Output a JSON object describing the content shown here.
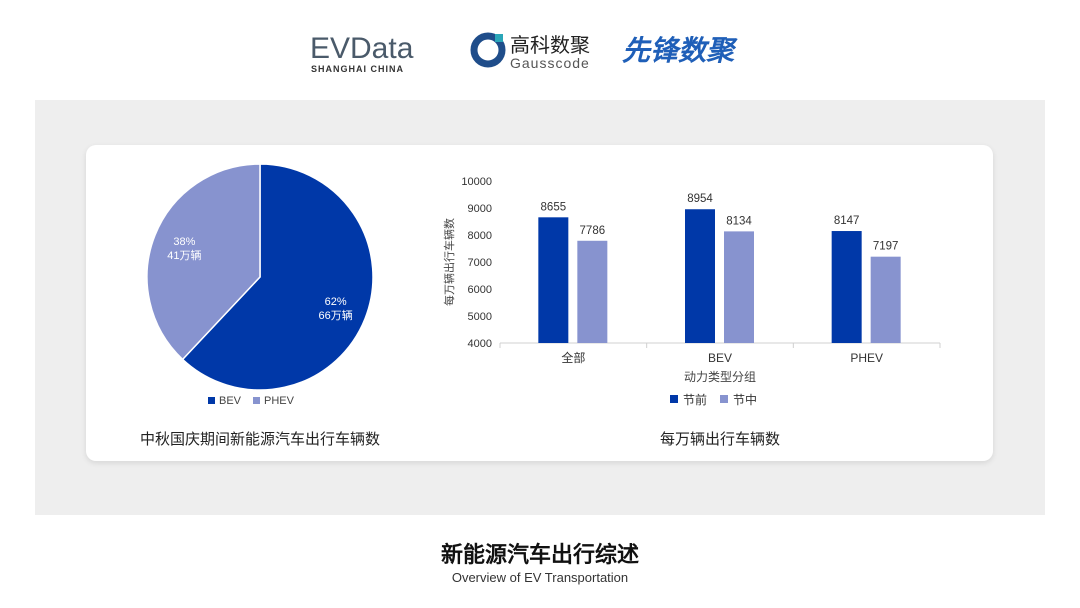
{
  "logos": {
    "evdata": "EVData",
    "evdata_sub": "SHANGHAI CHINA",
    "gauss_cn": "高科数聚",
    "gauss_en": "Gausscode",
    "xianfeng": "先锋数聚"
  },
  "colors": {
    "bev": "#0038a8",
    "phev": "#8793cf",
    "before": "#0038a8",
    "during": "#8793cf"
  },
  "chart_data": [
    {
      "type": "pie",
      "caption": "中秋国庆期间新能源汽车出行车辆数",
      "slices": [
        {
          "name": "BEV",
          "percent": 62,
          "label": "62%",
          "sub": "66万辆"
        },
        {
          "name": "PHEV",
          "percent": 38,
          "label": "38%",
          "sub": "41万辆"
        }
      ],
      "legend": [
        "BEV",
        "PHEV"
      ],
      "legend_position": "bottom"
    },
    {
      "type": "bar",
      "caption": "每万辆出行车辆数",
      "categories": [
        "全部",
        "BEV",
        "PHEV"
      ],
      "series": [
        {
          "name": "节前",
          "values": [
            8655,
            8954,
            8147
          ]
        },
        {
          "name": "节中",
          "values": [
            7786,
            8134,
            7197
          ]
        }
      ],
      "xlabel": "动力类型分组",
      "ylabel": "每万辆出行车辆数",
      "ylim": [
        4000,
        10000
      ],
      "yticks": [
        "4000",
        "5000",
        "6000",
        "7000",
        "8000",
        "9000",
        "10000"
      ],
      "legend_position": "bottom",
      "grid": false
    }
  ],
  "footer": {
    "title": "新能源汽车出行综述",
    "subtitle": "Overview of EV Transportation"
  }
}
